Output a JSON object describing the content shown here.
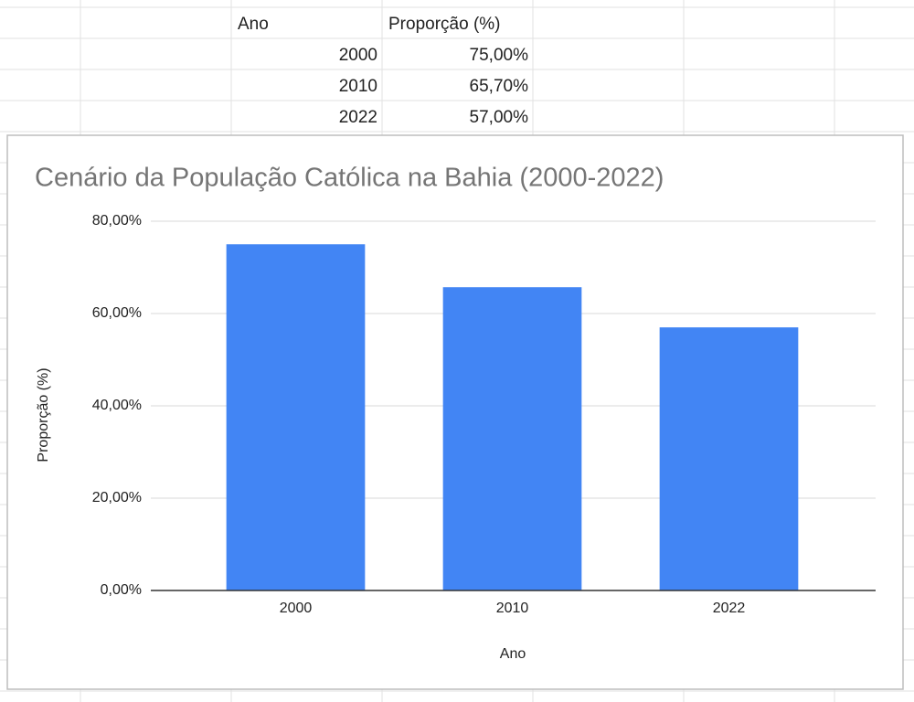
{
  "table": {
    "header": [
      "Ano",
      "Proporção (%)"
    ],
    "rows": [
      [
        "2000",
        "75,00%"
      ],
      [
        "2010",
        "65,70%"
      ],
      [
        "2022",
        "57,00%"
      ]
    ]
  },
  "chart_data": {
    "type": "bar",
    "title": "Cenário da População Católica na Bahia (2000-2022)",
    "x_label": "Ano",
    "y_label": "Proporção (%)",
    "categories": [
      "2000",
      "2010",
      "2022"
    ],
    "values": [
      75,
      65.7,
      57
    ],
    "color": "#4285f4",
    "ylim": [
      0,
      80
    ],
    "yticks": [
      {
        "value": 0,
        "label": "0,00%"
      },
      {
        "value": 20,
        "label": "20,00%"
      },
      {
        "value": 40,
        "label": "40,00%"
      },
      {
        "value": 60,
        "label": "60,00%"
      },
      {
        "value": 80,
        "label": "80,00%"
      }
    ],
    "grid": true
  }
}
